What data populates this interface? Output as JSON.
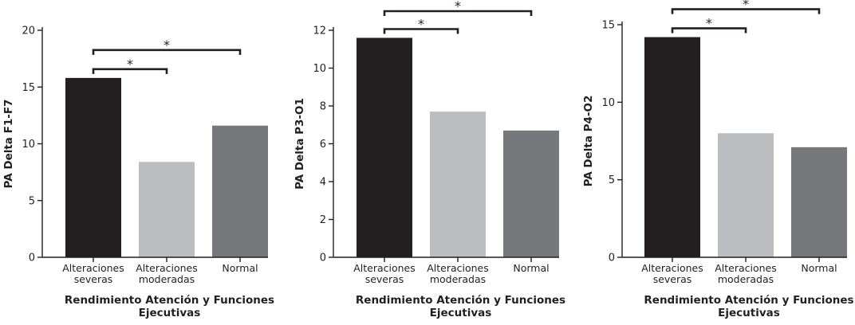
{
  "colors": {
    "severe": "#231f20",
    "moderate": "#bcbdc0",
    "normal": "#77787b",
    "ink": "#231f20"
  },
  "chart_data": [
    {
      "type": "bar",
      "categories": [
        [
          "Alteraciones",
          "severas"
        ],
        [
          "Alteraciones",
          "moderadas"
        ],
        [
          "Normal"
        ]
      ],
      "values": [
        15.8,
        8.4,
        11.6
      ],
      "ylabel": "PA Delta F1-F7",
      "xlabel": [
        "Rendimiento Atención y Funciones",
        "Ejecutivas"
      ],
      "ylim": [
        0,
        20
      ],
      "yticks": [
        0,
        5,
        10,
        15,
        20
      ],
      "significance": [
        {
          "from": 0,
          "to": 1,
          "label": "*"
        },
        {
          "from": 0,
          "to": 2,
          "label": "*"
        }
      ]
    },
    {
      "type": "bar",
      "categories": [
        [
          "Alteraciones",
          "severas"
        ],
        [
          "Alteraciones",
          "moderadas"
        ],
        [
          "Normal"
        ]
      ],
      "values": [
        11.6,
        7.7,
        6.7
      ],
      "ylabel": "PA Delta P3-O1",
      "xlabel": [
        "Rendimiento Atención y Funciones",
        "Ejecutivas"
      ],
      "ylim": [
        0,
        12
      ],
      "yticks": [
        0,
        2,
        4,
        6,
        8,
        10,
        12
      ],
      "significance": [
        {
          "from": 0,
          "to": 1,
          "label": "*"
        },
        {
          "from": 0,
          "to": 2,
          "label": "*"
        }
      ]
    },
    {
      "type": "bar",
      "categories": [
        [
          "Alteraciones",
          "severas"
        ],
        [
          "Alteraciones",
          "moderadas"
        ],
        [
          "Normal"
        ]
      ],
      "values": [
        14.2,
        8.0,
        7.1
      ],
      "ylabel": "PA Delta P4-O2",
      "xlabel": [
        "Rendimiento Atención y Funciones",
        "Ejecutivas"
      ],
      "ylim": [
        0,
        15
      ],
      "yticks": [
        0,
        5,
        10,
        15
      ],
      "significance": [
        {
          "from": 0,
          "to": 1,
          "label": "*"
        },
        {
          "from": 0,
          "to": 2,
          "label": "*"
        }
      ]
    }
  ]
}
